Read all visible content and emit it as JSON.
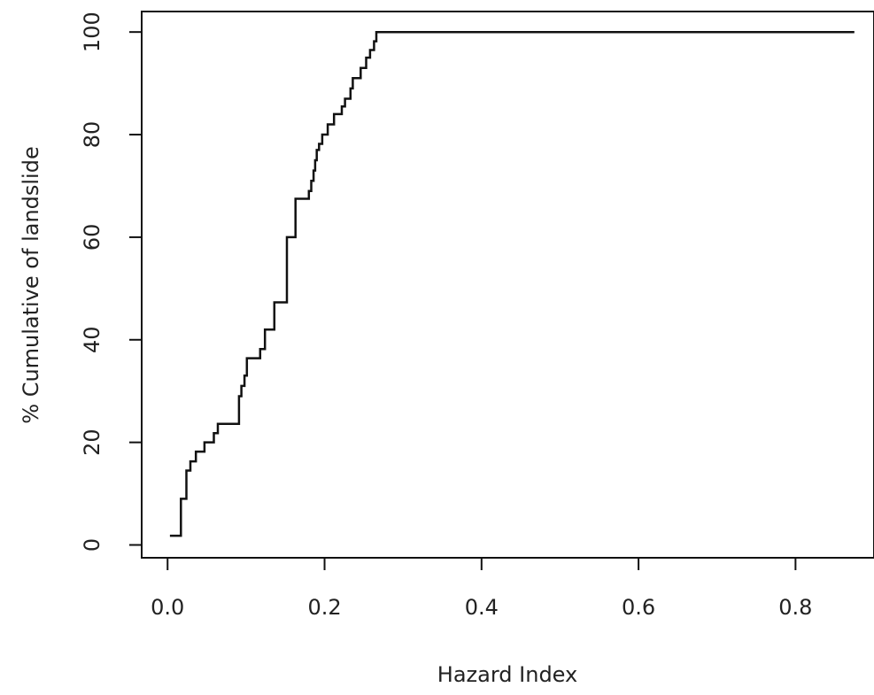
{
  "chart_data": {
    "type": "line",
    "line_style": "step",
    "title": "",
    "xlabel": "Hazard Index",
    "ylabel": "% Cumulative of landslide",
    "xlim": [
      -0.033,
      0.9
    ],
    "ylim": [
      -2.5,
      104
    ],
    "x_ticks": [
      0.0,
      0.2,
      0.4,
      0.6,
      0.8
    ],
    "x_tick_labels": [
      "0.0",
      "0.2",
      "0.4",
      "0.6",
      "0.8"
    ],
    "y_ticks": [
      0,
      20,
      40,
      60,
      80,
      100
    ],
    "y_tick_labels": [
      "0",
      "20",
      "40",
      "60",
      "80",
      "100"
    ],
    "grid": false,
    "legend": "none",
    "line_color": "#111111",
    "series": [
      {
        "x": [
          0.003,
          0.017,
          0.024,
          0.029,
          0.036,
          0.047,
          0.059,
          0.064,
          0.068,
          0.091,
          0.094,
          0.098,
          0.101,
          0.106,
          0.118,
          0.124,
          0.136,
          0.152,
          0.163,
          0.18,
          0.183,
          0.186,
          0.188,
          0.19,
          0.193,
          0.197,
          0.201,
          0.204,
          0.212,
          0.222,
          0.226,
          0.233,
          0.236,
          0.24,
          0.246,
          0.253,
          0.258,
          0.263,
          0.266,
          0.27,
          0.875
        ],
        "y": [
          1.8,
          9,
          14.5,
          16.3,
          18.2,
          20,
          21.8,
          23.6,
          23.6,
          29,
          31,
          33,
          36.4,
          36.4,
          38.2,
          42,
          47.3,
          60,
          67.5,
          69,
          71,
          73,
          75,
          77,
          78.2,
          80,
          80,
          82,
          84,
          85.5,
          87,
          89,
          91,
          91,
          93,
          95,
          96.5,
          98.2,
          100,
          100,
          100
        ]
      }
    ]
  }
}
